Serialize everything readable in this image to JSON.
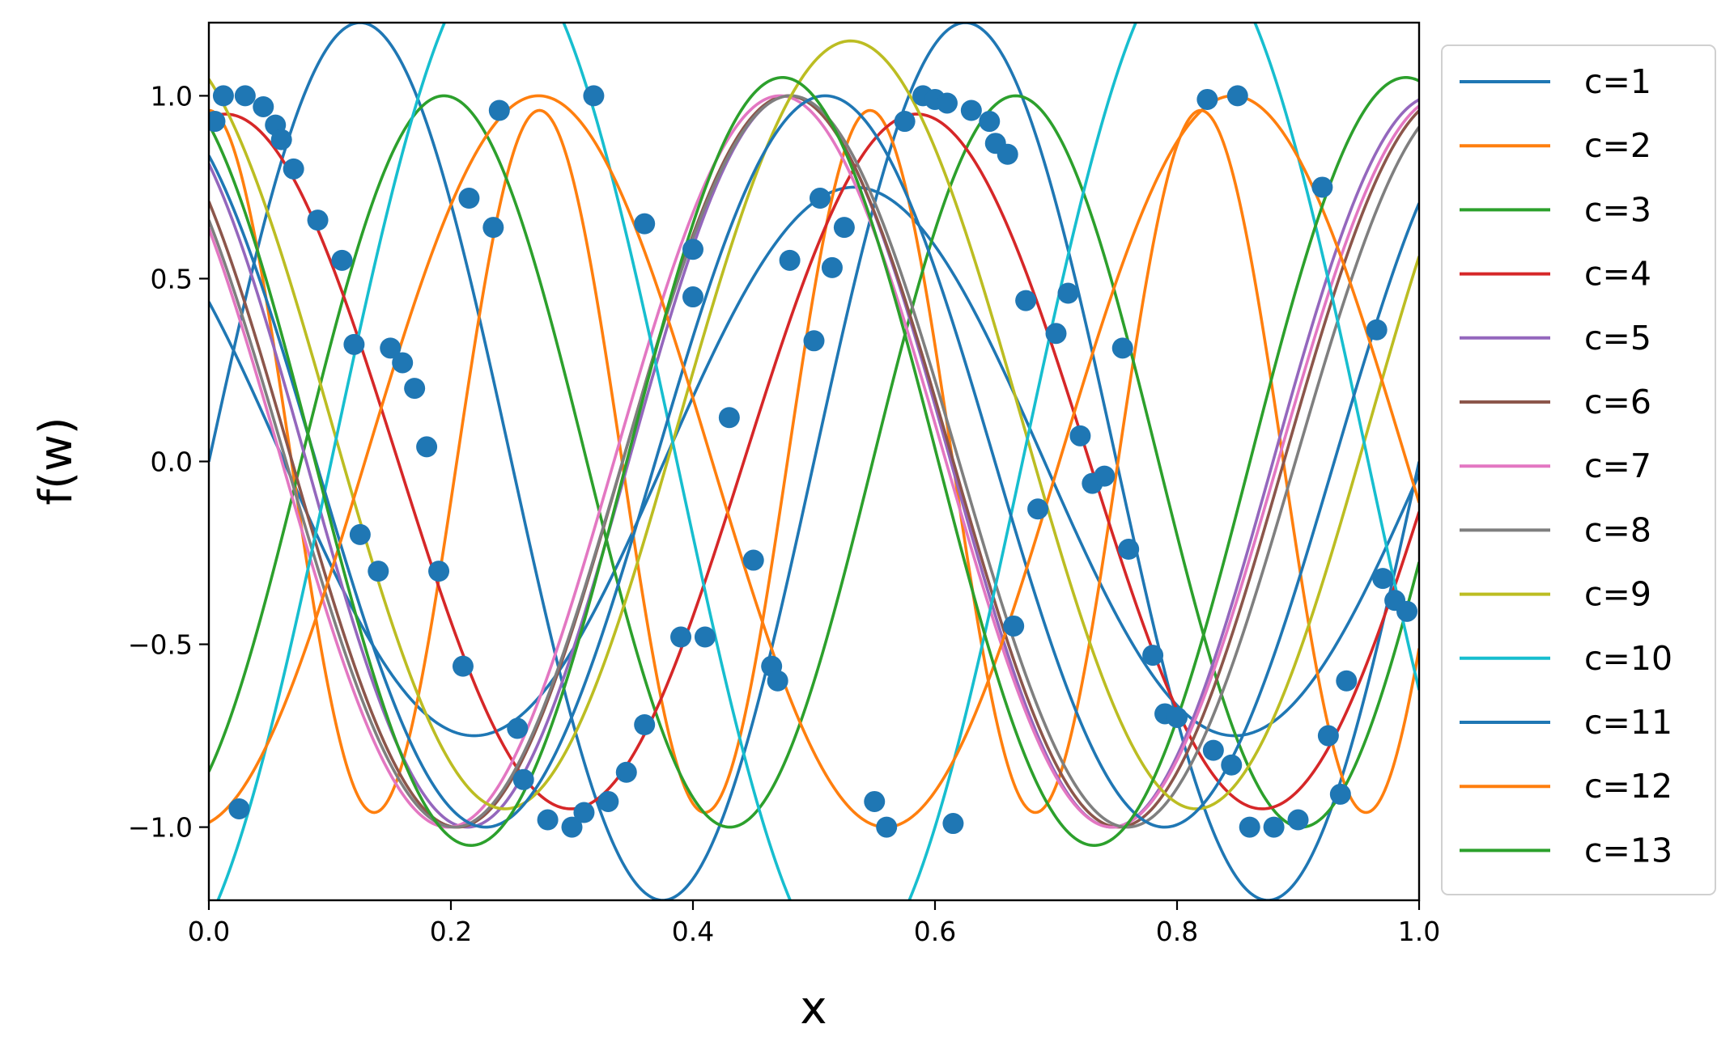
{
  "chart_data": {
    "type": "line",
    "title": "",
    "xlabel": "x",
    "ylabel": "f(w)",
    "xlim": [
      0.0,
      1.0
    ],
    "ylim": [
      -1.2,
      1.2
    ],
    "xticks": [
      0.0,
      0.2,
      0.4,
      0.6,
      0.8,
      1.0
    ],
    "xtick_labels": [
      "0.0",
      "0.2",
      "0.4",
      "0.6",
      "0.8",
      "1.0"
    ],
    "yticks": [
      -1.0,
      -0.5,
      0.0,
      0.5,
      1.0
    ],
    "ytick_labels": [
      "−1.0",
      "−0.5",
      "0.0",
      "0.5",
      "1.0"
    ],
    "grid": false,
    "legend_position": "outside-right",
    "series": [
      {
        "name": "c=1",
        "color": "#1f77b4",
        "params": {
          "a": 1.2,
          "k": 12.566,
          "phase": -1.571,
          "offset": 0.0
        }
      },
      {
        "name": "c=2",
        "color": "#ff7f0e",
        "params": {
          "a": 0.96,
          "k": 23.0,
          "phase": 0.0,
          "offset": 0.0
        }
      },
      {
        "name": "c=3",
        "color": "#2ca02c",
        "params": {
          "a": 1.0,
          "k": 13.3,
          "phase": 3.7,
          "offset": 0.0
        }
      },
      {
        "name": "c=4",
        "color": "#d62728",
        "params": {
          "a": 0.95,
          "k": 11.0,
          "phase": -0.15,
          "offset": 0.0
        }
      },
      {
        "name": "c=5",
        "color": "#9467bd",
        "params": {
          "a": 1.0,
          "k": 11.8,
          "phase": 0.62,
          "offset": 0.0
        }
      },
      {
        "name": "c=6",
        "color": "#8c564b",
        "params": {
          "a": 1.0,
          "k": 11.5,
          "phase": 0.78,
          "offset": 0.0
        }
      },
      {
        "name": "c=7",
        "color": "#e377c2",
        "params": {
          "a": 1.0,
          "k": 11.45,
          "phase": 0.88,
          "offset": 0.0
        }
      },
      {
        "name": "c=8",
        "color": "#7f7f7f",
        "params": {
          "a": 1.0,
          "k": 11.3,
          "phase": 0.85,
          "offset": 0.0
        }
      },
      {
        "name": "c=9",
        "color": "#bcbd22",
        "params": {
          "a": 1.05,
          "k": 11.0,
          "phase": 0.45,
          "offset": 0.1
        }
      },
      {
        "name": "c=10",
        "color": "#17becf",
        "params": {
          "a": 1.4,
          "k": 11.0,
          "phase": 3.6,
          "offset": 0.0
        }
      },
      {
        "name": "c=11",
        "color": "#1f77b4",
        "params": {
          "a": 1.0,
          "k": 11.2,
          "phase": 0.58,
          "offset": 0.0
        }
      },
      {
        "name": "c=12",
        "color": "#ff7f0e",
        "params": {
          "a": 1.0,
          "k": 10.95,
          "phase": 3.3,
          "offset": 0.0
        }
      },
      {
        "name": "c=13",
        "color": "#2ca02c",
        "params": {
          "a": 1.05,
          "k": 12.2,
          "phase": 0.5,
          "offset": 0.0
        }
      }
    ],
    "extra_lines": [
      {
        "color": "#1f77b4",
        "params": {
          "a": 0.75,
          "k": 10.0,
          "phase": 0.95,
          "offset": 0.0
        }
      }
    ],
    "scatter": {
      "color": "#1f77b4",
      "points": [
        [
          0.005,
          0.93
        ],
        [
          0.012,
          1.0
        ],
        [
          0.03,
          1.0
        ],
        [
          0.045,
          0.97
        ],
        [
          0.055,
          0.92
        ],
        [
          0.06,
          0.88
        ],
        [
          0.07,
          0.8
        ],
        [
          0.09,
          0.66
        ],
        [
          0.11,
          0.55
        ],
        [
          0.12,
          0.32
        ],
        [
          0.15,
          0.31
        ],
        [
          0.16,
          0.27
        ],
        [
          0.17,
          0.2
        ],
        [
          0.18,
          0.04
        ],
        [
          0.19,
          -0.3
        ],
        [
          0.21,
          -0.56
        ],
        [
          0.255,
          -0.73
        ],
        [
          0.26,
          -0.87
        ],
        [
          0.28,
          -0.98
        ],
        [
          0.3,
          -1.0
        ],
        [
          0.31,
          -0.96
        ],
        [
          0.33,
          -0.93
        ],
        [
          0.345,
          -0.85
        ],
        [
          0.36,
          -0.72
        ],
        [
          0.39,
          -0.48
        ],
        [
          0.41,
          -0.48
        ],
        [
          0.43,
          0.12
        ],
        [
          0.45,
          -0.27
        ],
        [
          0.465,
          -0.56
        ],
        [
          0.47,
          -0.6
        ],
        [
          0.48,
          0.55
        ],
        [
          0.5,
          0.33
        ],
        [
          0.505,
          0.72
        ],
        [
          0.515,
          0.53
        ],
        [
          0.525,
          0.64
        ],
        [
          0.55,
          -0.93
        ],
        [
          0.56,
          -1.0
        ],
        [
          0.575,
          0.93
        ],
        [
          0.59,
          1.0
        ],
        [
          0.6,
          0.99
        ],
        [
          0.61,
          0.98
        ],
        [
          0.615,
          -0.99
        ],
        [
          0.63,
          0.96
        ],
        [
          0.645,
          0.93
        ],
        [
          0.65,
          0.87
        ],
        [
          0.66,
          0.84
        ],
        [
          0.665,
          -0.45
        ],
        [
          0.675,
          0.44
        ],
        [
          0.685,
          -0.13
        ],
        [
          0.7,
          0.35
        ],
        [
          0.71,
          0.46
        ],
        [
          0.72,
          0.07
        ],
        [
          0.73,
          -0.06
        ],
        [
          0.74,
          -0.04
        ],
        [
          0.755,
          0.31
        ],
        [
          0.76,
          -0.24
        ],
        [
          0.78,
          -0.53
        ],
        [
          0.79,
          -0.69
        ],
        [
          0.8,
          -0.7
        ],
        [
          0.83,
          -0.79
        ],
        [
          0.845,
          -0.83
        ],
        [
          0.86,
          -1.0
        ],
        [
          0.88,
          -1.0
        ],
        [
          0.9,
          -0.98
        ],
        [
          0.92,
          0.75
        ],
        [
          0.925,
          -0.75
        ],
        [
          0.935,
          -0.91
        ],
        [
          0.94,
          -0.6
        ],
        [
          0.965,
          0.36
        ],
        [
          0.97,
          -0.32
        ],
        [
          0.98,
          -0.38
        ],
        [
          0.99,
          -0.41
        ],
        [
          0.825,
          0.99
        ],
        [
          0.85,
          1.0
        ],
        [
          0.125,
          -0.2
        ],
        [
          0.14,
          -0.3
        ],
        [
          0.215,
          0.72
        ],
        [
          0.235,
          0.64
        ],
        [
          0.24,
          0.96
        ],
        [
          0.318,
          1.0
        ],
        [
          0.36,
          0.65
        ],
        [
          0.4,
          0.58
        ],
        [
          0.4,
          0.45
        ],
        [
          0.025,
          -0.95
        ]
      ]
    }
  }
}
